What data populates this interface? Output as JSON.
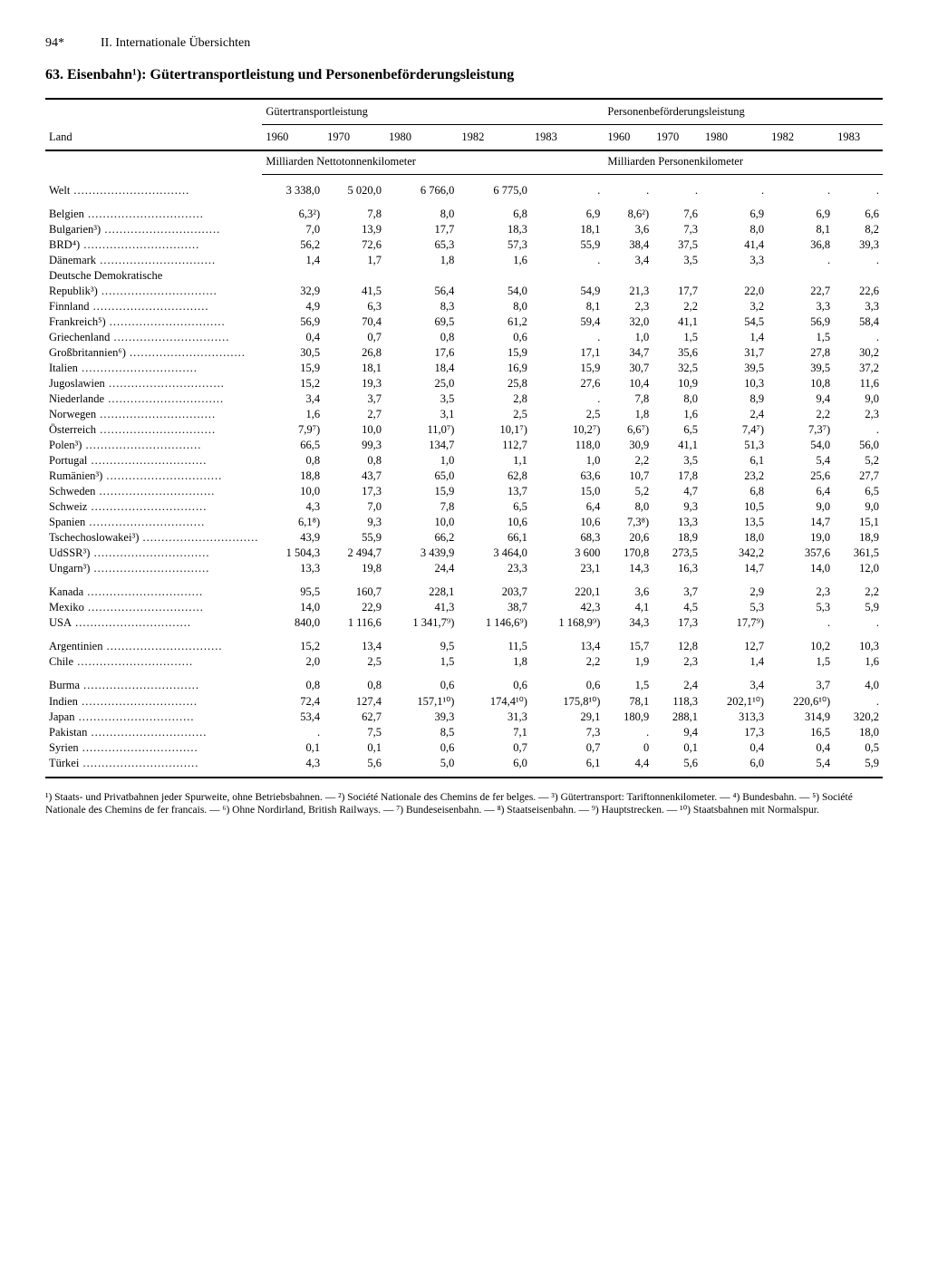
{
  "page": {
    "number": "94*",
    "section": "II. Internationale Übersichten"
  },
  "title": "63. Eisenbahn¹): Gütertransportleistung und Personenbeförderungsleistung",
  "header": {
    "land": "Land",
    "guter": "Gütertransportleistung",
    "personen": "Personenbeförderungsleistung",
    "y1960": "1960",
    "y1970": "1970",
    "y1980": "1980",
    "y1982": "1982",
    "y1983": "1983",
    "unit_guter": "Milliarden Nettotonnenkilometer",
    "unit_personen": "Milliarden Personenkilometer"
  },
  "rows": [
    {
      "c": "Welt",
      "g": [
        "3 338,0",
        "5 020,0",
        "6 766,0",
        "6 775,0",
        "."
      ],
      "p": [
        ".",
        ".",
        ".",
        ".",
        "."
      ],
      "gap": true
    },
    {
      "c": "Belgien",
      "g": [
        "6,3²)",
        "7,8",
        "8,0",
        "6,8",
        "6,9"
      ],
      "p": [
        "8,6²)",
        "7,6",
        "6,9",
        "6,9",
        "6,6"
      ],
      "gap": true
    },
    {
      "c": "Bulgarien³)",
      "g": [
        "7,0",
        "13,9",
        "17,7",
        "18,3",
        "18,1"
      ],
      "p": [
        "3,6",
        "7,3",
        "8,0",
        "8,1",
        "8,2"
      ]
    },
    {
      "c": "BRD⁴)",
      "g": [
        "56,2",
        "72,6",
        "65,3",
        "57,3",
        "55,9"
      ],
      "p": [
        "38,4",
        "37,5",
        "41,4",
        "36,8",
        "39,3"
      ]
    },
    {
      "c": "Dänemark",
      "g": [
        "1,4",
        "1,7",
        "1,8",
        "1,6",
        "."
      ],
      "p": [
        "3,4",
        "3,5",
        "3,3",
        ".",
        "."
      ]
    },
    {
      "c": "Deutsche Demokratische",
      "g": [
        "",
        "",
        "",
        "",
        ""
      ],
      "p": [
        "",
        "",
        "",
        "",
        ""
      ],
      "nodots": true
    },
    {
      "c": "  Republik³)",
      "g": [
        "32,9",
        "41,5",
        "56,4",
        "54,0",
        "54,9"
      ],
      "p": [
        "21,3",
        "17,7",
        "22,0",
        "22,7",
        "22,6"
      ]
    },
    {
      "c": "Finnland",
      "g": [
        "4,9",
        "6,3",
        "8,3",
        "8,0",
        "8,1"
      ],
      "p": [
        "2,3",
        "2,2",
        "3,2",
        "3,3",
        "3,3"
      ]
    },
    {
      "c": "Frankreich⁵)",
      "g": [
        "56,9",
        "70,4",
        "69,5",
        "61,2",
        "59,4"
      ],
      "p": [
        "32,0",
        "41,1",
        "54,5",
        "56,9",
        "58,4"
      ]
    },
    {
      "c": "Griechenland",
      "g": [
        "0,4",
        "0,7",
        "0,8",
        "0,6",
        "."
      ],
      "p": [
        "1,0",
        "1,5",
        "1,4",
        "1,5",
        "."
      ]
    },
    {
      "c": "Großbritannien⁶)",
      "g": [
        "30,5",
        "26,8",
        "17,6",
        "15,9",
        "17,1"
      ],
      "p": [
        "34,7",
        "35,6",
        "31,7",
        "27,8",
        "30,2"
      ]
    },
    {
      "c": "Italien",
      "g": [
        "15,9",
        "18,1",
        "18,4",
        "16,9",
        "15,9"
      ],
      "p": [
        "30,7",
        "32,5",
        "39,5",
        "39,5",
        "37,2"
      ]
    },
    {
      "c": "Jugoslawien",
      "g": [
        "15,2",
        "19,3",
        "25,0",
        "25,8",
        "27,6"
      ],
      "p": [
        "10,4",
        "10,9",
        "10,3",
        "10,8",
        "11,6"
      ]
    },
    {
      "c": "Niederlande",
      "g": [
        "3,4",
        "3,7",
        "3,5",
        "2,8",
        "."
      ],
      "p": [
        "7,8",
        "8,0",
        "8,9",
        "9,4",
        "9,0"
      ]
    },
    {
      "c": "Norwegen",
      "g": [
        "1,6",
        "2,7",
        "3,1",
        "2,5",
        "2,5"
      ],
      "p": [
        "1,8",
        "1,6",
        "2,4",
        "2,2",
        "2,3"
      ]
    },
    {
      "c": "Österreich",
      "g": [
        "7,9⁷)",
        "10,0",
        "11,0⁷)",
        "10,1⁷)",
        "10,2⁷)"
      ],
      "p": [
        "6,6⁷)",
        "6,5",
        "7,4⁷)",
        "7,3⁷)",
        "."
      ]
    },
    {
      "c": "Polen³)",
      "g": [
        "66,5",
        "99,3",
        "134,7",
        "112,7",
        "118,0"
      ],
      "p": [
        "30,9",
        "41,1",
        "51,3",
        "54,0",
        "56,0"
      ]
    },
    {
      "c": "Portugal",
      "g": [
        "0,8",
        "0,8",
        "1,0",
        "1,1",
        "1,0"
      ],
      "p": [
        "2,2",
        "3,5",
        "6,1",
        "5,4",
        "5,2"
      ]
    },
    {
      "c": "Rumänien³)",
      "g": [
        "18,8",
        "43,7",
        "65,0",
        "62,8",
        "63,6"
      ],
      "p": [
        "10,7",
        "17,8",
        "23,2",
        "25,6",
        "27,7"
      ]
    },
    {
      "c": "Schweden",
      "g": [
        "10,0",
        "17,3",
        "15,9",
        "13,7",
        "15,0"
      ],
      "p": [
        "5,2",
        "4,7",
        "6,8",
        "6,4",
        "6,5"
      ]
    },
    {
      "c": "Schweiz",
      "g": [
        "4,3",
        "7,0",
        "7,8",
        "6,5",
        "6,4"
      ],
      "p": [
        "8,0",
        "9,3",
        "10,5",
        "9,0",
        "9,0"
      ]
    },
    {
      "c": "Spanien",
      "g": [
        "6,1⁸)",
        "9,3",
        "10,0",
        "10,6",
        "10,6"
      ],
      "p": [
        "7,3⁸)",
        "13,3",
        "13,5",
        "14,7",
        "15,1"
      ]
    },
    {
      "c": "Tschechoslowakei³)",
      "g": [
        "43,9",
        "55,9",
        "66,2",
        "66,1",
        "68,3"
      ],
      "p": [
        "20,6",
        "18,9",
        "18,0",
        "19,0",
        "18,9"
      ]
    },
    {
      "c": "UdSSR³)",
      "g": [
        "1 504,3",
        "2 494,7",
        "3 439,9",
        "3 464,0",
        "3 600"
      ],
      "p": [
        "170,8",
        "273,5",
        "342,2",
        "357,6",
        "361,5"
      ]
    },
    {
      "c": "Ungarn³)",
      "g": [
        "13,3",
        "19,8",
        "24,4",
        "23,3",
        "23,1"
      ],
      "p": [
        "14,3",
        "16,3",
        "14,7",
        "14,0",
        "12,0"
      ]
    },
    {
      "c": "Kanada",
      "g": [
        "95,5",
        "160,7",
        "228,1",
        "203,7",
        "220,1"
      ],
      "p": [
        "3,6",
        "3,7",
        "2,9",
        "2,3",
        "2,2"
      ],
      "gap": true
    },
    {
      "c": "Mexiko",
      "g": [
        "14,0",
        "22,9",
        "41,3",
        "38,7",
        "42,3"
      ],
      "p": [
        "4,1",
        "4,5",
        "5,3",
        "5,3",
        "5,9"
      ]
    },
    {
      "c": "USA",
      "g": [
        "840,0",
        "1 116,6",
        "1 341,7⁹)",
        "1 146,6⁹)",
        "1 168,9⁹)"
      ],
      "p": [
        "34,3",
        "17,3",
        "17,7⁹)",
        ".",
        "."
      ]
    },
    {
      "c": "Argentinien",
      "g": [
        "15,2",
        "13,4",
        "9,5",
        "11,5",
        "13,4"
      ],
      "p": [
        "15,7",
        "12,8",
        "12,7",
        "10,2",
        "10,3"
      ],
      "gap": true
    },
    {
      "c": "Chile",
      "g": [
        "2,0",
        "2,5",
        "1,5",
        "1,8",
        "2,2"
      ],
      "p": [
        "1,9",
        "2,3",
        "1,4",
        "1,5",
        "1,6"
      ]
    },
    {
      "c": "Burma",
      "g": [
        "0,8",
        "0,8",
        "0,6",
        "0,6",
        "0,6"
      ],
      "p": [
        "1,5",
        "2,4",
        "3,4",
        "3,7",
        "4,0"
      ],
      "gap": true
    },
    {
      "c": "Indien",
      "g": [
        "72,4",
        "127,4",
        "157,1¹⁰)",
        "174,4¹⁰)",
        "175,8¹⁰)"
      ],
      "p": [
        "78,1",
        "118,3",
        "202,1¹⁰)",
        "220,6¹⁰)",
        "."
      ]
    },
    {
      "c": "Japan",
      "g": [
        "53,4",
        "62,7",
        "39,3",
        "31,3",
        "29,1"
      ],
      "p": [
        "180,9",
        "288,1",
        "313,3",
        "314,9",
        "320,2"
      ]
    },
    {
      "c": "Pakistan",
      "g": [
        ".",
        "7,5",
        "8,5",
        "7,1",
        "7,3"
      ],
      "p": [
        ".",
        "9,4",
        "17,3",
        "16,5",
        "18,0"
      ]
    },
    {
      "c": "Syrien",
      "g": [
        "0,1",
        "0,1",
        "0,6",
        "0,7",
        "0,7"
      ],
      "p": [
        "0",
        "0,1",
        "0,4",
        "0,4",
        "0,5"
      ]
    },
    {
      "c": "Türkei",
      "g": [
        "4,3",
        "5,6",
        "5,0",
        "6,0",
        "6,1"
      ],
      "p": [
        "4,4",
        "5,6",
        "6,0",
        "5,4",
        "5,9"
      ]
    }
  ],
  "footnotes": "¹) Staats- und Privatbahnen jeder Spurweite, ohne Betriebsbahnen. — ²) Société Nationale des Chemins de fer belges. — ³) Gütertransport: Tariftonnenkilometer. — ⁴) Bundesbahn. — ⁵) Société Nationale des Chemins de fer francais. — ⁶) Ohne Nordirland, British Railways. — ⁷) Bundeseisenbahn. — ⁸) Staatseisenbahn. — ⁹) Hauptstrecken. — ¹⁰) Staatsbahnen mit Normalspur."
}
